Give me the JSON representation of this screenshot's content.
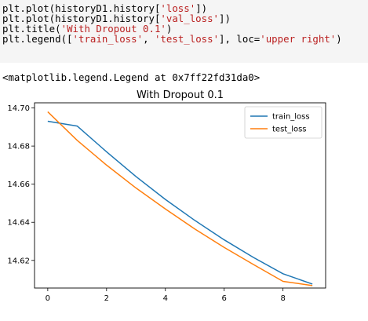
{
  "code": {
    "line1_pre": "plt.plot(historyD1.history[",
    "line1_str": "'loss'",
    "line1_post": "])",
    "line2_pre": "plt.plot(historyD1.history[",
    "line2_str": "'val_loss'",
    "line2_post": "])",
    "line3_pre": "plt.title(",
    "line3_str": "'With Dropout 0.1'",
    "line3_post": ")",
    "line4_pre": "plt.legend([",
    "line4_str1": "'train_loss'",
    "line4_sep": ", ",
    "line4_str2": "'test_loss'",
    "line4_mid": "], loc=",
    "line4_str3": "'upper right'",
    "line4_post": ")"
  },
  "output": {
    "repr": "<matplotlib.legend.Legend at 0x7ff22fd31da0>"
  },
  "colors": {
    "train": "#1f77b4",
    "test": "#ff7f0e"
  },
  "chart_data": {
    "type": "line",
    "title": "With Dropout 0.1",
    "xlabel": "",
    "ylabel": "",
    "x": [
      0,
      1,
      2,
      3,
      4,
      5,
      6,
      7,
      8,
      9
    ],
    "xlim": [
      -0.45,
      9.45
    ],
    "ylim": [
      14.6055,
      14.7027
    ],
    "xticks": [
      "0",
      "2",
      "4",
      "6",
      "8"
    ],
    "yticks": [
      "14.62",
      "14.64",
      "14.66",
      "14.68",
      "14.70"
    ],
    "legend": "upper right",
    "grid": false,
    "series": [
      {
        "name": "train_loss",
        "color": "#1f77b4",
        "values": [
          14.693,
          14.6905,
          14.677,
          14.664,
          14.652,
          14.641,
          14.6308,
          14.6215,
          14.613,
          14.6076
        ]
      },
      {
        "name": "test_loss",
        "color": "#ff7f0e",
        "values": [
          14.698,
          14.683,
          14.67,
          14.658,
          14.647,
          14.6365,
          14.6268,
          14.6178,
          14.609,
          14.6068
        ]
      }
    ]
  }
}
